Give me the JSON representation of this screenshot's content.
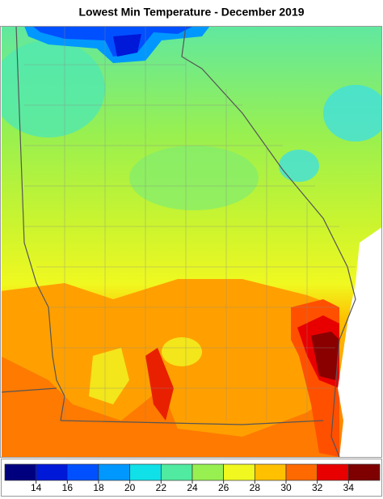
{
  "title": "Lowest Min Temperature - December 2019",
  "legend": {
    "colors": [
      "#00007f",
      "#0018d8",
      "#0050ff",
      "#0098ff",
      "#10e0e8",
      "#50eaa0",
      "#98f050",
      "#f0f820",
      "#ffc000",
      "#ff6a00",
      "#e80000",
      "#7f0000"
    ],
    "ticks": [
      14,
      16,
      18,
      20,
      22,
      24,
      26,
      28,
      30,
      32,
      34
    ]
  }
}
